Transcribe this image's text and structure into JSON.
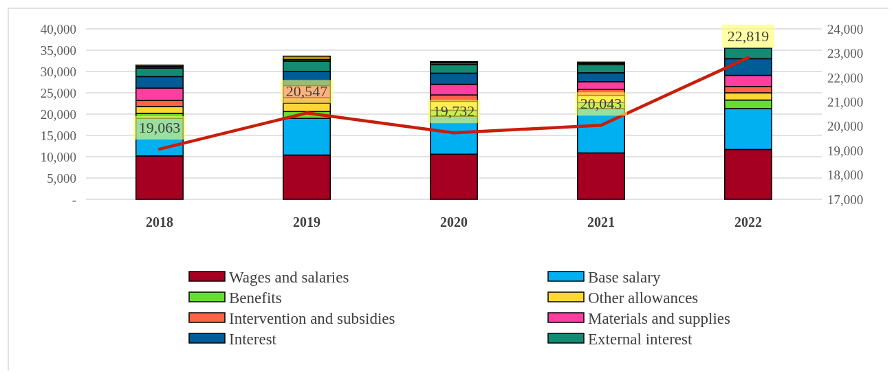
{
  "chart_data": {
    "type": "bar",
    "stacked": true,
    "categories": [
      "2018",
      "2019",
      "2020",
      "2021",
      "2022"
    ],
    "ylim": [
      0,
      40000
    ],
    "yticks": [
      {
        "value": 0,
        "label": "-"
      },
      {
        "value": 5000,
        "label": "5,000"
      },
      {
        "value": 10000,
        "label": "10,000"
      },
      {
        "value": 15000,
        "label": "15,000"
      },
      {
        "value": 20000,
        "label": "20,000"
      },
      {
        "value": 25000,
        "label": "25,000"
      },
      {
        "value": 30000,
        "label": "30,000"
      },
      {
        "value": 35000,
        "label": "35,000"
      },
      {
        "value": 40000,
        "label": "40,000"
      }
    ],
    "y2lim": [
      17000,
      24000
    ],
    "y2ticks": [
      {
        "value": 17000,
        "label": "17,000"
      },
      {
        "value": 18000,
        "label": "18,000"
      },
      {
        "value": 19000,
        "label": "19,000"
      },
      {
        "value": 20000,
        "label": "20,000"
      },
      {
        "value": 21000,
        "label": "21,000"
      },
      {
        "value": 22000,
        "label": "22,000"
      },
      {
        "value": 23000,
        "label": "23,000"
      },
      {
        "value": 24000,
        "label": "24,000"
      }
    ],
    "grid": "y",
    "legend": "bottom",
    "series": [
      {
        "name": "Wages and salaries",
        "color": "#a50021",
        "values": [
          10200,
          10400,
          10600,
          10900,
          11700
        ]
      },
      {
        "name": "Base salary",
        "color": "#00b0f0",
        "values": [
          8800,
          8600,
          8900,
          10400,
          9600
        ]
      },
      {
        "name": "Benefits",
        "color": "#66dd33",
        "values": [
          1200,
          1600,
          1400,
          1400,
          2000
        ]
      },
      {
        "name": "Other allowances",
        "color": "#ffd633",
        "values": [
          1600,
          2000,
          2100,
          1700,
          1700
        ]
      },
      {
        "name": "Intervention and subsidies",
        "color": "#ff6347",
        "values": [
          1400,
          1300,
          1500,
          1400,
          1500
        ]
      },
      {
        "name": "Materials and supplies",
        "color": "#ff3fa0",
        "values": [
          2900,
          2800,
          2500,
          1800,
          2600
        ]
      },
      {
        "name": "Interest",
        "color": "#005b96",
        "values": [
          2700,
          3300,
          2600,
          2100,
          3900
        ]
      },
      {
        "name": "External interest",
        "color": "#138a72",
        "values": [
          2000,
          2400,
          2000,
          1900,
          2500
        ]
      },
      {
        "color": "#2e5a1c",
        "values": [
          400,
          400,
          500,
          300,
          null
        ]
      },
      {
        "color": "#b8960c",
        "values": [
          300,
          800,
          200,
          300,
          null
        ]
      },
      {
        "type": "line",
        "axis": "y2",
        "color": "#c81e0a",
        "values": [
          19063,
          20547,
          19732,
          20043,
          22819
        ],
        "value_labels": [
          "19,063",
          "20,547",
          "19,732",
          "20,043",
          "22,819"
        ]
      }
    ]
  }
}
